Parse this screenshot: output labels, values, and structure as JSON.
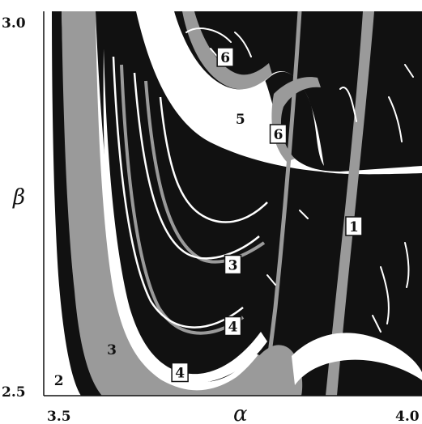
{
  "chart_data": {
    "type": "heatmap",
    "title": "",
    "xlabel": "α",
    "ylabel": "β",
    "xlim": [
      3.5,
      4.0
    ],
    "ylim": [
      2.5,
      3.0
    ],
    "x_tick_labels": [
      "3.5",
      "4.0"
    ],
    "y_tick_labels": [
      "2.5",
      "3.0"
    ],
    "grid": false,
    "legend": "none",
    "colors": {
      "chaos": "#111111",
      "gray_band": "#9a9a9a",
      "white_band": "#ffffff"
    },
    "period_labels": [
      {
        "text": "1",
        "alpha": 3.91,
        "beta": 2.72,
        "boxed": true
      },
      {
        "text": "2",
        "alpha": 3.52,
        "beta": 2.52,
        "boxed": false
      },
      {
        "text": "3",
        "alpha": 3.59,
        "beta": 2.56,
        "boxed": false
      },
      {
        "text": "3",
        "alpha": 3.75,
        "beta": 2.67,
        "boxed": true
      },
      {
        "text": "4",
        "alpha": 3.75,
        "beta": 2.59,
        "boxed": true
      },
      {
        "text": "4",
        "alpha": 3.68,
        "beta": 2.53,
        "boxed": true
      },
      {
        "text": "5",
        "alpha": 3.76,
        "beta": 2.86,
        "boxed": false
      },
      {
        "text": "6",
        "alpha": 3.74,
        "beta": 2.94,
        "boxed": true
      },
      {
        "text": "6",
        "alpha": 3.81,
        "beta": 2.84,
        "boxed": true
      }
    ]
  }
}
